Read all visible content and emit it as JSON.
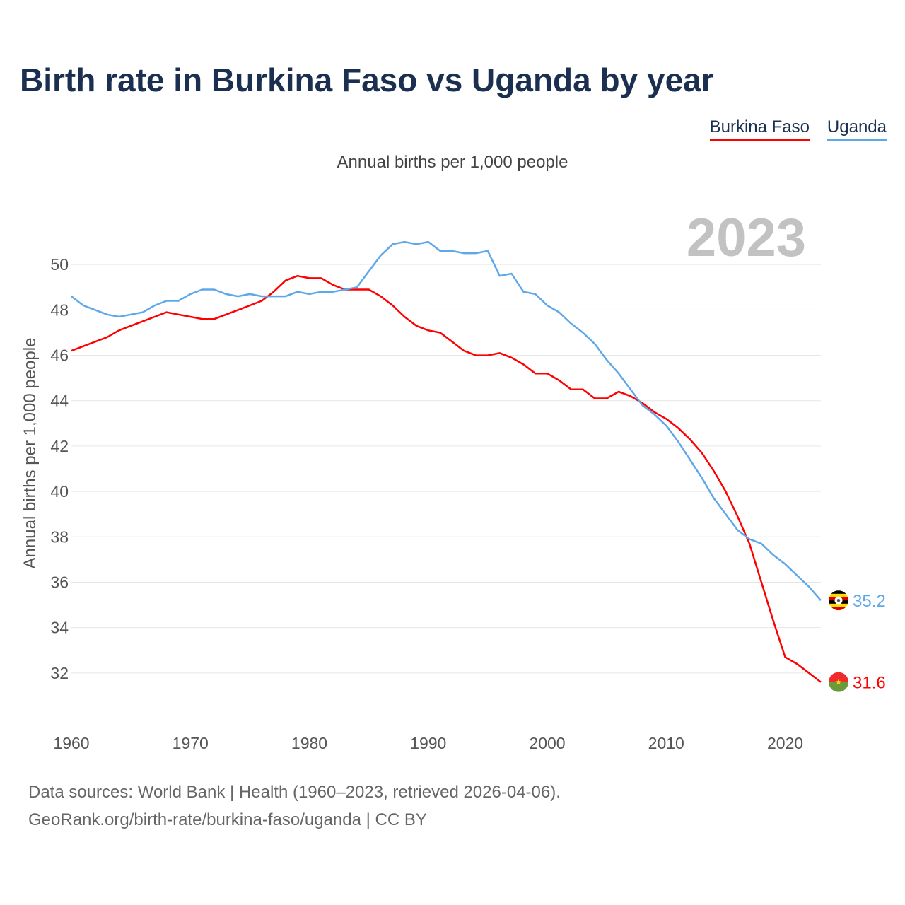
{
  "title": "Birth rate in Burkina Faso vs Uganda by year",
  "source": {
    "line1": "Data sources: World Bank | Health (1960–2023, retrieved 2026-04-06).",
    "line2": "GeoRank.org/birth-rate/burkina-faso/uganda | CC BY"
  },
  "chart_data": {
    "type": "line",
    "title": "Birth rate in Burkina Faso vs Uganda by year",
    "subtitle": "Annual births per 1,000 people",
    "xlabel": "",
    "ylabel": "Annual births per 1,000 people",
    "year_label": "2023",
    "xlim": [
      1960,
      2023
    ],
    "ylim": [
      30.5,
      52
    ],
    "x_ticks": [
      1960,
      1970,
      1980,
      1990,
      2000,
      2010,
      2020
    ],
    "y_ticks": [
      32,
      34,
      36,
      38,
      40,
      42,
      44,
      46,
      48,
      50
    ],
    "grid": true,
    "legend_position": "top-right",
    "x": [
      1960,
      1961,
      1962,
      1963,
      1964,
      1965,
      1966,
      1967,
      1968,
      1969,
      1970,
      1971,
      1972,
      1973,
      1974,
      1975,
      1976,
      1977,
      1978,
      1979,
      1980,
      1981,
      1982,
      1983,
      1984,
      1985,
      1986,
      1987,
      1988,
      1989,
      1990,
      1991,
      1992,
      1993,
      1994,
      1995,
      1996,
      1997,
      1998,
      1999,
      2000,
      2001,
      2002,
      2003,
      2004,
      2005,
      2006,
      2007,
      2008,
      2009,
      2010,
      2011,
      2012,
      2013,
      2014,
      2015,
      2016,
      2017,
      2018,
      2019,
      2020,
      2021,
      2022,
      2023
    ],
    "series": [
      {
        "name": "Burkina Faso",
        "color": "#ff0000",
        "end_label": "31.6",
        "values": [
          46.2,
          46.4,
          46.6,
          46.8,
          47.1,
          47.3,
          47.5,
          47.7,
          47.9,
          47.8,
          47.7,
          47.6,
          47.6,
          47.8,
          48.0,
          48.2,
          48.4,
          48.8,
          49.3,
          49.5,
          49.4,
          49.4,
          49.1,
          48.9,
          48.9,
          48.9,
          48.6,
          48.2,
          47.7,
          47.3,
          47.1,
          47.0,
          46.6,
          46.2,
          46.0,
          46.0,
          46.1,
          45.9,
          45.6,
          45.2,
          45.2,
          44.9,
          44.5,
          44.5,
          44.1,
          44.1,
          44.4,
          44.2,
          43.9,
          43.5,
          43.2,
          42.8,
          42.3,
          41.7,
          40.9,
          40.0,
          38.9,
          37.7,
          36.0,
          34.3,
          32.7,
          32.4,
          32.0,
          31.6
        ]
      },
      {
        "name": "Uganda",
        "color": "#5fa8e8",
        "end_label": "35.2",
        "values": [
          48.6,
          48.2,
          48.0,
          47.8,
          47.7,
          47.8,
          47.9,
          48.2,
          48.4,
          48.4,
          48.7,
          48.9,
          48.9,
          48.7,
          48.6,
          48.7,
          48.6,
          48.6,
          48.6,
          48.8,
          48.7,
          48.8,
          48.8,
          48.9,
          49.0,
          49.7,
          50.4,
          50.9,
          51.0,
          50.9,
          51.0,
          50.6,
          50.6,
          50.5,
          50.5,
          50.6,
          49.5,
          49.6,
          48.8,
          48.7,
          48.2,
          47.9,
          47.4,
          47.0,
          46.5,
          45.8,
          45.2,
          44.5,
          43.8,
          43.4,
          42.9,
          42.2,
          41.4,
          40.6,
          39.7,
          39.0,
          38.3,
          37.9,
          37.7,
          37.2,
          36.8,
          36.3,
          35.8,
          35.2
        ]
      }
    ]
  }
}
